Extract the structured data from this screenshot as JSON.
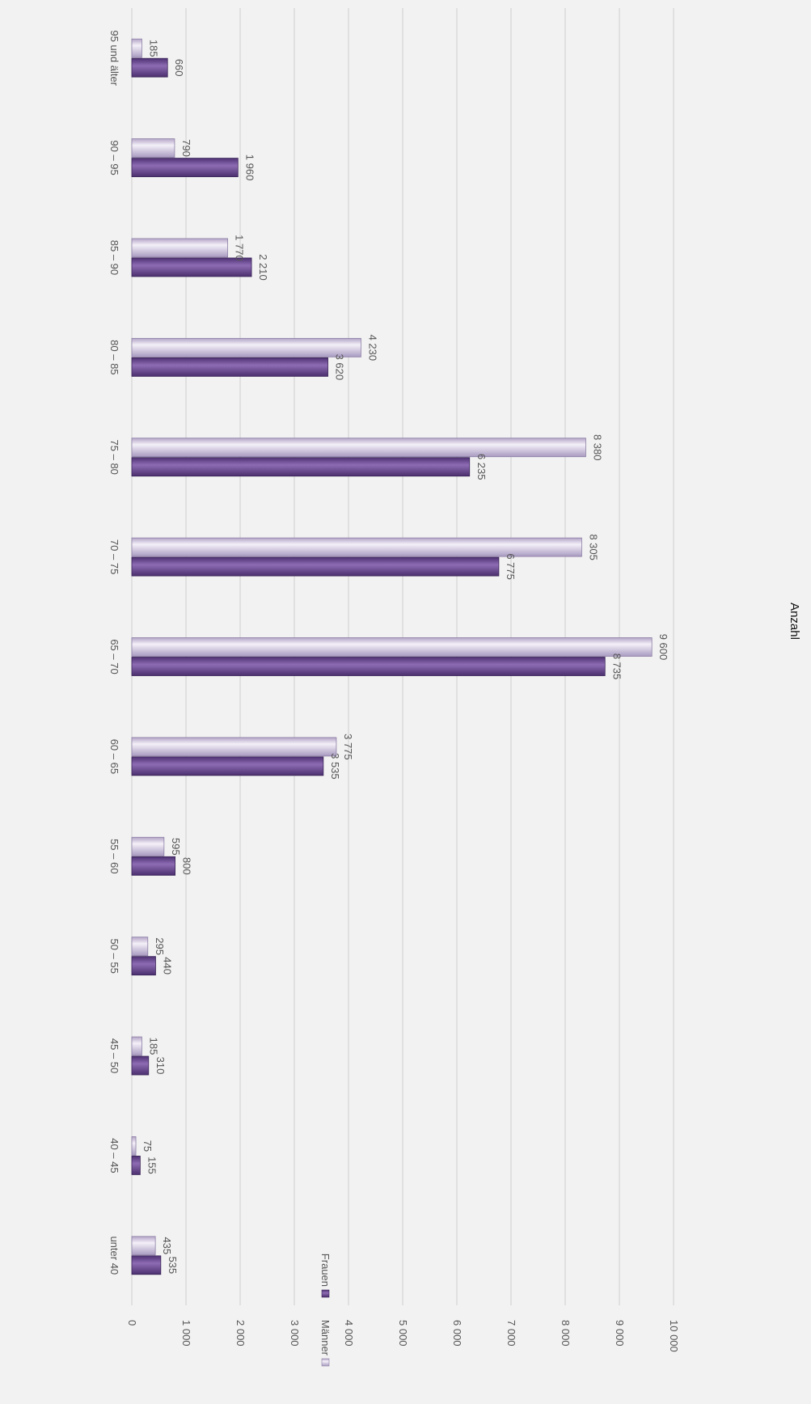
{
  "chart_data": {
    "type": "bar",
    "orientation": "vertical",
    "display_rotation": "rotated 90 degrees clockwise",
    "title": "",
    "xlabel": "",
    "ylabel": "Anzahl",
    "ylim": [
      0,
      10000
    ],
    "yticks": [
      "0",
      "1 000",
      "2 000",
      "3 000",
      "4 000",
      "5 000",
      "6 000",
      "7 000",
      "8 000",
      "9 000",
      "10 000"
    ],
    "grid": true,
    "legend_position": "top-right",
    "categories": [
      "95 und älter",
      "90 – 95",
      "85 – 90",
      "80 – 85",
      "75 – 80",
      "70 – 75",
      "65 – 70",
      "60 – 65",
      "55 – 60",
      "50 – 55",
      "45 – 50",
      "40 – 45",
      "unter 40"
    ],
    "series": [
      {
        "name": "Männer",
        "color": "#d9cfe6",
        "values": [
          185,
          790,
          1770,
          4230,
          8380,
          8305,
          9600,
          3775,
          595,
          295,
          185,
          75,
          435
        ],
        "labels": [
          "185",
          "790",
          "1 770",
          "4 230",
          "8 380",
          "8 305",
          "9 600",
          "3 775",
          "595",
          "295",
          "185",
          "75",
          "435"
        ]
      },
      {
        "name": "Frauen",
        "color": "#6b4b92",
        "values": [
          660,
          1960,
          2210,
          3620,
          6235,
          6775,
          8735,
          3535,
          800,
          440,
          310,
          155,
          535
        ],
        "labels": [
          "660",
          "1 960",
          "2 210",
          "3 620",
          "6 235",
          "6 775",
          "8 735",
          "3 535",
          "800",
          "440",
          "310",
          "155",
          "535"
        ]
      }
    ]
  }
}
